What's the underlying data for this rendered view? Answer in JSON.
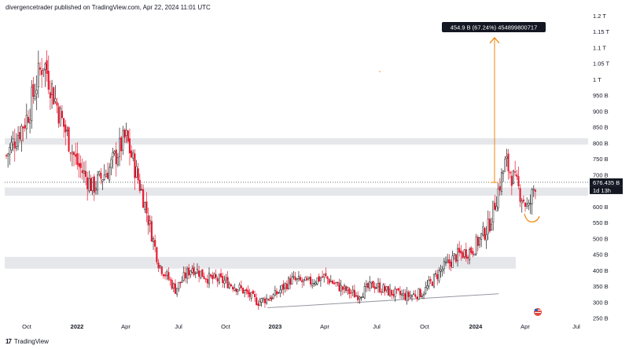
{
  "header": {
    "published": "divergencetrader published on TradingView.com, Apr 22, 2024 11:01 UTC"
  },
  "footer": {
    "brand": "TradingView",
    "logo": "17"
  },
  "chart_data": {
    "type": "candlestick",
    "title": "",
    "x_labels": [
      "Oct",
      "2022",
      "Apr",
      "Jul",
      "Oct",
      "2023",
      "Apr",
      "Jul",
      "Oct",
      "2024",
      "Apr",
      "Jul"
    ],
    "y_labels": [
      "1.2 T",
      "1.15 T",
      "1.1 T",
      "1.05 T",
      "1 T",
      "950 B",
      "900 B",
      "850 B",
      "800 B",
      "750 B",
      "700 B",
      "650 B",
      "600 B",
      "550 B",
      "500 B",
      "450 B",
      "400 B",
      "350 B",
      "300 B",
      "250 B"
    ],
    "ylim": [
      250,
      1200
    ],
    "y_unit": "B",
    "grid": false,
    "current_price": {
      "label": "676.435 B",
      "timer": "1d 13h",
      "value": 676.435
    },
    "measurement": {
      "label": "454.9 B (67.24%) 454899800717",
      "from": 676,
      "to": 1131
    },
    "zones": [
      {
        "from": 795,
        "to": 815
      },
      {
        "from": 634,
        "to": 660
      },
      {
        "from": 405,
        "to": 442
      }
    ],
    "trendline": {
      "from": {
        "date": "2022-12",
        "value": 282
      },
      "to": {
        "date": "2024-04",
        "value": 326
      }
    },
    "series_path": [
      {
        "date": "2021-09",
        "value": 760
      },
      {
        "date": "2021-10",
        "value": 880
      },
      {
        "date": "2021-11",
        "value": 1060
      },
      {
        "date": "2021-12",
        "value": 890
      },
      {
        "date": "2022-01",
        "value": 740
      },
      {
        "date": "2022-02",
        "value": 660
      },
      {
        "date": "2022-03",
        "value": 720
      },
      {
        "date": "2022-04",
        "value": 820
      },
      {
        "date": "2022-05",
        "value": 640
      },
      {
        "date": "2022-06",
        "value": 420
      },
      {
        "date": "2022-07",
        "value": 340
      },
      {
        "date": "2022-08",
        "value": 410
      },
      {
        "date": "2022-09",
        "value": 375
      },
      {
        "date": "2022-10",
        "value": 365
      },
      {
        "date": "2022-11",
        "value": 340
      },
      {
        "date": "2022-12",
        "value": 300
      },
      {
        "date": "2023-01",
        "value": 320
      },
      {
        "date": "2023-02",
        "value": 370
      },
      {
        "date": "2023-03",
        "value": 360
      },
      {
        "date": "2023-04",
        "value": 380
      },
      {
        "date": "2023-05",
        "value": 345
      },
      {
        "date": "2023-06",
        "value": 320
      },
      {
        "date": "2023-07",
        "value": 355
      },
      {
        "date": "2023-08",
        "value": 330
      },
      {
        "date": "2023-09",
        "value": 318
      },
      {
        "date": "2023-10",
        "value": 330
      },
      {
        "date": "2023-11",
        "value": 395
      },
      {
        "date": "2023-12",
        "value": 445
      },
      {
        "date": "2024-01",
        "value": 465
      },
      {
        "date": "2024-02",
        "value": 540
      },
      {
        "date": "2024-03",
        "value": 740
      },
      {
        "date": "2024-04",
        "value": 590
      },
      {
        "date": "2024-04",
        "value": 676
      }
    ],
    "colors": {
      "up": "#1e1e1e",
      "down": "#e8172e",
      "measure": "#f0870a",
      "zone": "#e6e7eb",
      "trend": "#9598a1"
    }
  }
}
